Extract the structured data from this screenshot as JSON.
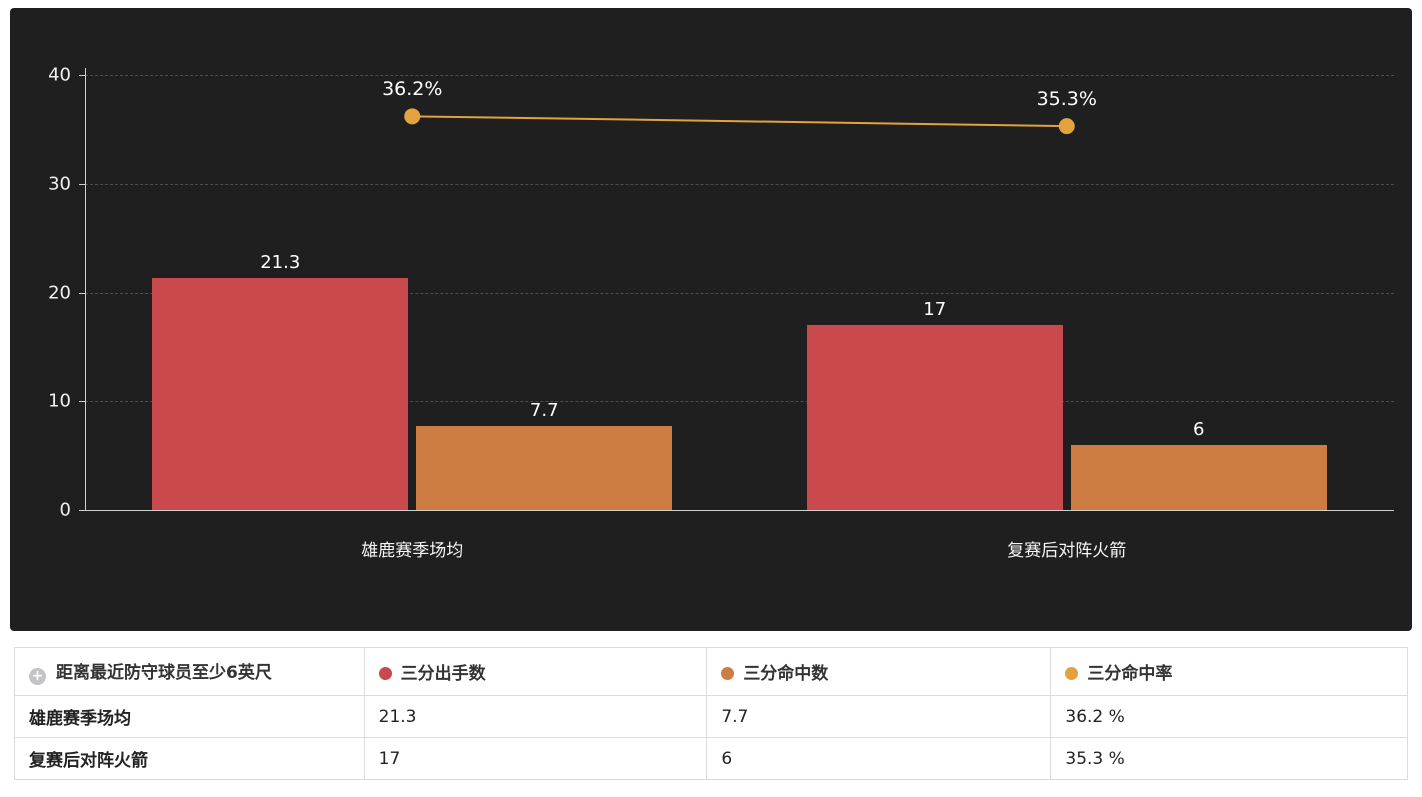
{
  "chart_data": {
    "type": "bar",
    "categories": [
      "雄鹿赛季场均",
      "复赛后对阵火箭"
    ],
    "series": [
      {
        "name": "三分出手数",
        "type": "bar",
        "color": "#c9494d",
        "values": [
          21.3,
          17
        ],
        "labels": [
          "21.3",
          "17"
        ]
      },
      {
        "name": "三分命中数",
        "type": "bar",
        "color": "#cd7c44",
        "values": [
          7.7,
          6
        ],
        "labels": [
          "7.7",
          "6"
        ]
      },
      {
        "name": "三分命中率",
        "type": "line",
        "color": "#e2a33e",
        "values": [
          36.2,
          35.3
        ],
        "labels": [
          "36.2%",
          "35.3%"
        ]
      }
    ],
    "title": "",
    "xlabel": "",
    "ylabel": "",
    "ylim": [
      0,
      40
    ],
    "yticks": [
      0,
      10,
      20,
      30,
      40
    ],
    "grid": "horizontal-dashed",
    "legend_position": "table-below",
    "background": "#1f1f1f"
  },
  "table": {
    "corner_label": "距离最近防守球员至少6英尺",
    "corner_icon": "circle-plus-icon",
    "columns": [
      {
        "label": "三分出手数",
        "dot_color": "#c9494d"
      },
      {
        "label": "三分命中数",
        "dot_color": "#cd7c44"
      },
      {
        "label": "三分命中率",
        "dot_color": "#e2a33e"
      }
    ],
    "rows": [
      {
        "label": "雄鹿赛季场均",
        "values": [
          "21.3",
          "7.7",
          "36.2 %"
        ]
      },
      {
        "label": "复赛后对阵火箭",
        "values": [
          "17",
          "6",
          "35.3 %"
        ]
      }
    ]
  }
}
